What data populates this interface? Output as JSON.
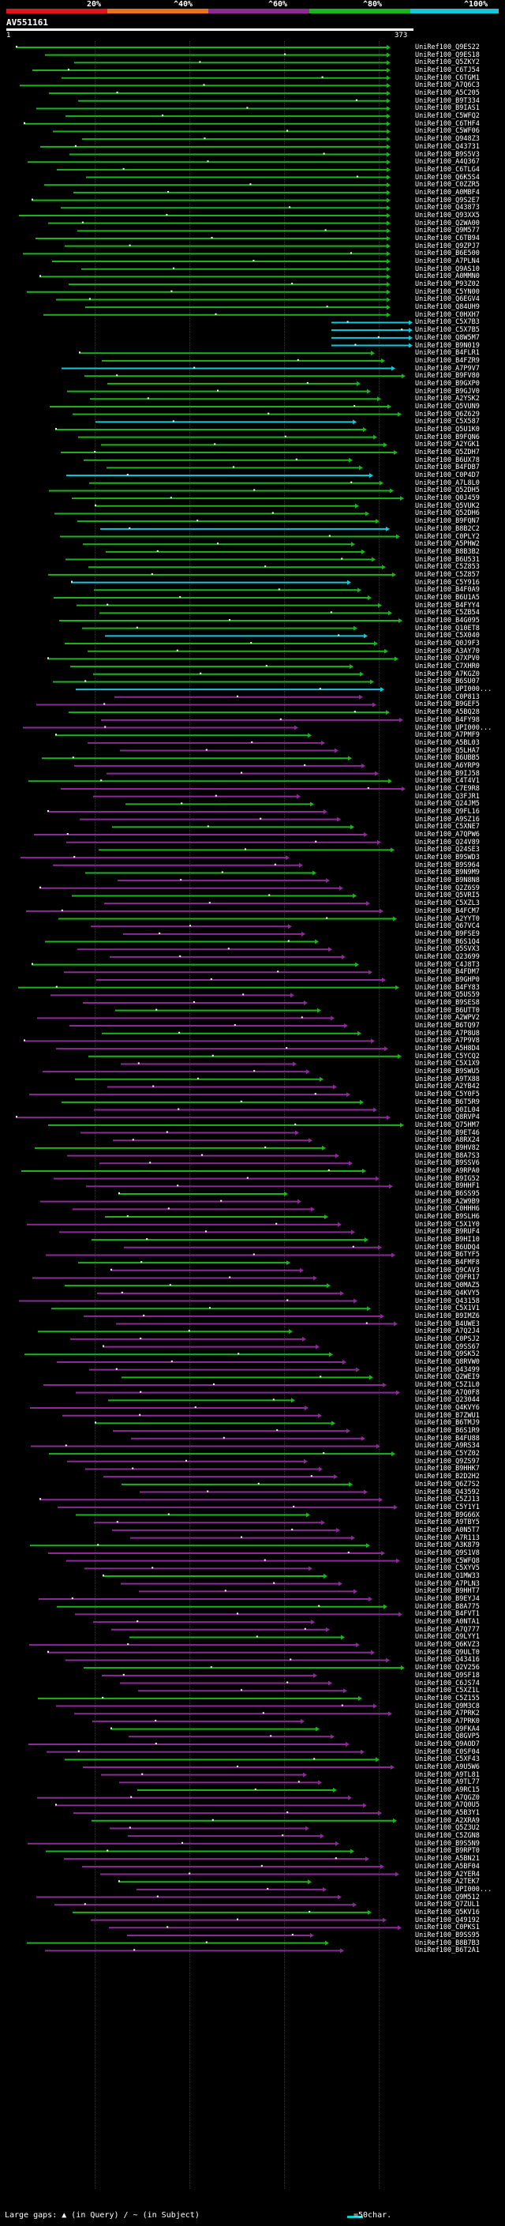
{
  "legend": {
    "labels": [
      "20%",
      "^40%",
      "^60%",
      "^80%",
      "^100%"
    ],
    "colors": [
      "#e0141e",
      "#e6731e",
      "#8c2a96",
      "#1bb51b",
      "#13c9d9"
    ]
  },
  "query": {
    "name": "AV551161",
    "start": "1",
    "end": "373"
  },
  "hits": [
    "UniRef100_Q9ES22",
    "UniRef100_Q9ES18",
    "UniRef100_Q5ZKY2",
    "UniRef100_C6TJ54",
    "UniRef100_C6TGM1",
    "UniRef100_A7Q6C3",
    "UniRef100_A5C205",
    "UniRef100_B9T334",
    "UniRef100_B9IAS1",
    "UniRef100_C5WFQ2",
    "UniRef100_C6THF4",
    "UniRef100_C5WF06",
    "UniRef100_Q948Z3",
    "UniRef100_Q43731",
    "UniRef100_B9S5V3",
    "UniRef100_A4Q367",
    "UniRef100_C6TLG4",
    "UniRef100_Q6K5S4",
    "UniRef100_C0ZZR5",
    "UniRef100_A0MBF4",
    "UniRef100_Q9S2E7",
    "UniRef100_Q43873",
    "UniRef100_Q93XX5",
    "UniRef100_Q2WA00",
    "UniRef100_Q9M577",
    "UniRef100_C6TB94",
    "UniRef100_Q9ZPJ7",
    "UniRef100_B6E500",
    "UniRef100_A7PLN4",
    "UniRef100_Q9AS10",
    "UniRef100_A0MMN0",
    "UniRef100_P93Z02",
    "UniRef100_C5YN00",
    "UniRef100_Q6EGV4",
    "UniRef100_Q84UH9",
    "UniRef100_C0HXH7",
    "UniRef100_C5X7B3",
    "UniRef100_C5X7B5",
    "UniRef100_Q8W5M7",
    "UniRef100_B9N019",
    "UniRef100_B4FLR1",
    "UniRef100_B4FZR9",
    "UniRef100_A7P9V7",
    "UniRef100_B9FV80",
    "UniRef100_B9GXP0",
    "UniRef100_B9GJV0",
    "UniRef100_A2YSK2",
    "UniRef100_Q5VUN9",
    "UniRef100_Q6Z629",
    "UniRef100_C5X587",
    "UniRef100_Q5U1K0",
    "UniRef100_B9FQN6",
    "UniRef100_A2YGK1",
    "UniRef100_Q5ZDH7",
    "UniRef100_B6UX78",
    "UniRef100_B4FDB7",
    "UniRef100_C0P4D7",
    "UniRef100_A7L8L0",
    "UniRef100_Q52DH5",
    "UniRef100_Q0J459",
    "UniRef100_Q5VUK2",
    "UniRef100_Q52DH6",
    "UniRef100_B9FQN7",
    "UniRef100_B8B2C2",
    "UniRef100_C0PLY2",
    "UniRef100_A5PHW2",
    "UniRef100_B8B3B2",
    "UniRef100_B6U531",
    "UniRef100_C5Z853",
    "UniRef100_C5Z857",
    "UniRef100_C5Y916",
    "UniRef100_B4F0A9",
    "UniRef100_B6U1A5",
    "UniRef100_B4FYY4",
    "UniRef100_C5ZB54",
    "UniRef100_B4G095",
    "UniRef100_Q10ET8",
    "UniRef100_C5X040",
    "UniRef100_Q0J9F3",
    "UniRef100_A3AY70",
    "UniRef100_Q7XPV0",
    "UniRef100_C7XHR0",
    "UniRef100_A7KGZ0",
    "UniRef100_B6SU07",
    "UniRef100_UPI000...",
    "UniRef100_C0P813",
    "UniRef100_B9GEF5",
    "UniRef100_A5BQ28",
    "UniRef100_B4FY98",
    "UniRef100_UPI000...",
    "UniRef100_A7PMF9",
    "UniRef100_A5BL03",
    "UniRef100_Q5LHA7",
    "UniRef100_B6UBB5",
    "UniRef100_A6YRP9",
    "UniRef100_B9IJ58",
    "UniRef100_C4T4V1",
    "UniRef100_C7E9R8",
    "UniRef100_Q3FJR1",
    "UniRef100_Q24JM5",
    "UniRef100_Q9FL16",
    "UniRef100_A9SZ16",
    "UniRef100_C5XNE7",
    "UniRef100_A7QPW6",
    "UniRef100_Q24V89",
    "UniRef100_Q24SE3",
    "UniRef100_B9SWD3",
    "UniRef100_B9S964",
    "UniRef100_B9N9M9",
    "UniRef100_B9N8N8",
    "UniRef100_Q2Z6S9",
    "UniRef100_Q5VRI5",
    "UniRef100_C5XZL3",
    "UniRef100_B4FCM7",
    "UniRef100_A2YYT0",
    "UniRef100_Q67VC4",
    "UniRef100_B9FSE9",
    "UniRef100_B6S1Q4",
    "UniRef100_Q5SVX3",
    "UniRef100_Q23699",
    "UniRef100_C4J8T3",
    "UniRef100_B4FDM7",
    "UniRef100_B9GHP0",
    "UniRef100_B4FY83",
    "UniRef100_Q5US59",
    "UniRef100_B9SES8",
    "UniRef100_B6UTT0",
    "UniRef100_A2WPV2",
    "UniRef100_B6TQ97",
    "UniRef100_A7P8U8",
    "UniRef100_A7P9V8",
    "UniRef100_A5H8D4",
    "UniRef100_C5YCQ2",
    "UniRef100_C5X1X9",
    "UniRef100_B9SWU5",
    "UniRef100_A9TX88",
    "UniRef100_A2YB42",
    "UniRef100_C5Y0F5",
    "UniRef100_B6T5R9",
    "UniRef100_Q0IL04",
    "UniRef100_Q8RVP4",
    "UniRef100_Q75HM7",
    "UniRef100_B9ET46",
    "UniRef100_A8RX24",
    "UniRef100_B9HV82",
    "UniRef100_B8A7S3",
    "UniRef100_B9SSV6",
    "UniRef100_A9RPA0",
    "UniRef100_B9IG52",
    "UniRef100_B9HHF1",
    "UniRef100_B6SS95",
    "UniRef100_A2W9B9",
    "UniRef100_C0HHH6",
    "UniRef100_B9SLH6",
    "UniRef100_C5X1Y0",
    "UniRef100_B9RUF4",
    "UniRef100_B9HI10",
    "UniRef100_B6UDQ4",
    "UniRef100_B6TYF5",
    "UniRef100_B4FMF8",
    "UniRef100_Q9CAV3",
    "UniRef100_Q9FR17",
    "UniRef100_Q0MAZ5",
    "UniRef100_Q4KVY5",
    "UniRef100_Q43158",
    "UniRef100_C5X1V1",
    "UniRef100_B9IMZ6",
    "UniRef100_B4UWE3",
    "UniRef100_A7Q2J4",
    "UniRef100_C0PSJ2",
    "UniRef100_Q9SS67",
    "UniRef100_Q9SK52",
    "UniRef100_Q8RVW0",
    "UniRef100_Q43499",
    "UniRef100_Q2WEI9",
    "UniRef100_C5Z1L0",
    "UniRef100_A7Q0F8",
    "UniRef100_Q23044",
    "UniRef100_Q4KVY6",
    "UniRef100_B7ZWU1",
    "UniRef100_B6TMJ9",
    "UniRef100_B6S1R9",
    "UniRef100_B4FU88",
    "UniRef100_A9RS34",
    "UniRef100_C5YZ02",
    "UniRef100_Q9ZS97",
    "UniRef100_B9HHK7",
    "UniRef100_B2D2H2",
    "UniRef100_Q6Z7S2",
    "UniRef100_Q43592",
    "UniRef100_C5ZJ13",
    "UniRef100_C5Y1Y1",
    "UniRef100_B9G66X",
    "UniRef100_A9TBY5",
    "UniRef100_A0N5T7",
    "UniRef100_A7R113",
    "UniRef100_A3K879",
    "UniRef100_Q9S1V8",
    "UniRef100_C5WFQ8",
    "UniRef100_C5XYV5",
    "UniRef100_Q1MW33",
    "UniRef100_A7PLN3",
    "UniRef100_B9HHT7",
    "UniRef100_B9EYJ4",
    "UniRef100_B8A775",
    "UniRef100_B4FVT1",
    "UniRef100_A0NTA1",
    "UniRef100_A7Q777",
    "UniRef100_Q9LYY1",
    "UniRef100_Q6KVZ3",
    "UniRef100_Q9ULT0",
    "UniRef100_Q43416",
    "UniRef100_Q2V256",
    "UniRef100_Q9SF18",
    "UniRef100_C6JS74",
    "UniRef100_C5XZ1L",
    "UniRef100_C5Z155",
    "UniRef100_Q9M3C8",
    "UniRef100_A7PRK2",
    "UniRef100_A7PRK0",
    "UniRef100_Q9FKA4",
    "UniRef100_Q8GVP5",
    "UniRef100_Q9AOD7",
    "UniRef100_C0SF04",
    "UniRef100_C5XF43",
    "UniRef100_A9U5W6",
    "UniRef100_A9TL81",
    "UniRef100_A9TL77",
    "UniRef100_A9RC15",
    "UniRef100_A7QGZ0",
    "UniRef100_A7Q0U5",
    "UniRef100_A5B3Y1",
    "UniRef100_A2XRA9",
    "UniRef100_Q5Z3U2",
    "UniRef100_C5ZGN8",
    "UniRef100_B9S5N9",
    "UniRef100_B9RPT0",
    "UniRef100_A5BN21",
    "UniRef100_A5BF04",
    "UniRef100_A2YER4",
    "UniRef100_A2TEK7",
    "UniRef100_UPI000...",
    "UniRef100_Q9M512",
    "UniRef100_Q7ZUL1",
    "UniRef100_Q5KV16",
    "UniRef100_Q49192",
    "UniRef100_C0PKS1",
    "UniRef100_B9SS95",
    "UniRef100_B8B7B3",
    "UniRef100_B6T2A1"
  ],
  "footer": {
    "text": "Large gaps: ▲ (in Query) / ~ (in Subject)",
    "scale": "=50char."
  }
}
